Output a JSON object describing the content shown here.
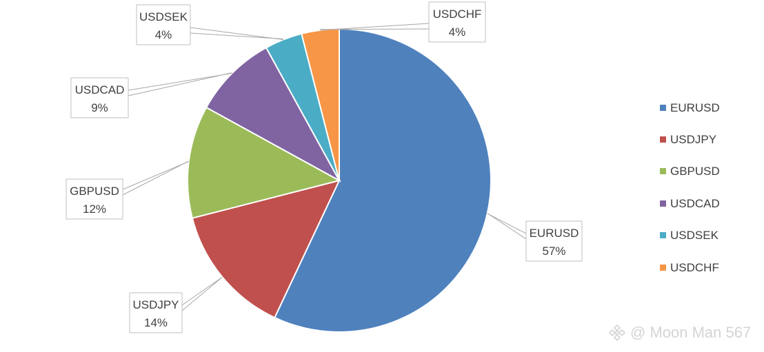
{
  "chart_data": {
    "type": "pie",
    "title": "",
    "legend_position": "right",
    "slices": [
      {
        "label": "EURUSD",
        "value": 57,
        "value_label": "57%",
        "color": "#4f81bd"
      },
      {
        "label": "USDJPY",
        "value": 14,
        "value_label": "14%",
        "color": "#c0504d"
      },
      {
        "label": "GBPUSD",
        "value": 12,
        "value_label": "12%",
        "color": "#9bbb59"
      },
      {
        "label": "USDCAD",
        "value": 9,
        "value_label": "9%",
        "color": "#8064a2"
      },
      {
        "label": "USDSEK",
        "value": 4,
        "value_label": "4%",
        "color": "#4bacc6"
      },
      {
        "label": "USDCHF",
        "value": 4,
        "value_label": "4%",
        "color": "#f79646"
      }
    ]
  },
  "watermark": {
    "text": "@ Moon Man 567"
  }
}
